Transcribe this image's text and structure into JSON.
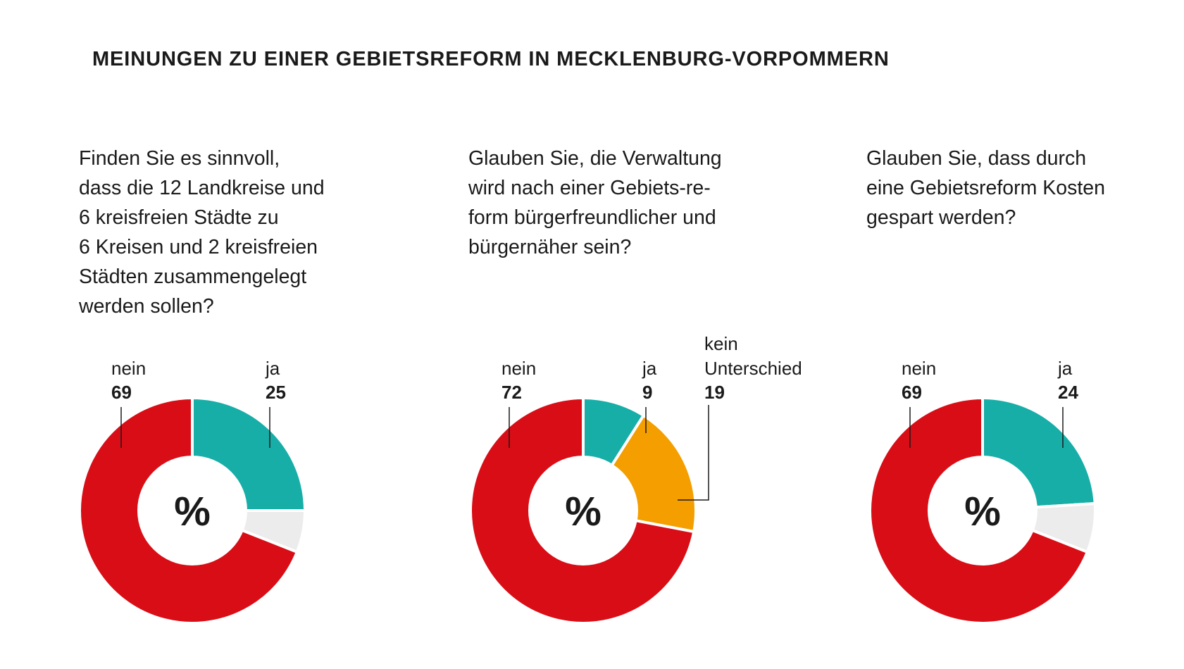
{
  "title": "MEINUNGEN ZU EINER GEBIETSREFORM IN MECKLENBURG-VORPOMMERN",
  "colors": {
    "nein": "#d90d16",
    "ja": "#17aea8",
    "kein_unterschied": "#f49e00",
    "rest": "#ececec",
    "text": "#1a1a1a"
  },
  "chart_data": [
    {
      "type": "pie",
      "variant": "donut",
      "center_label": "%",
      "question_lines": [
        "Finden Sie es sinnvoll,",
        "dass die 12 Landkreise und",
        "6 kreisfreien Städte zu",
        "6 Kreisen und 2 kreisfreien",
        "Städten zusammengelegt",
        "werden sollen?"
      ],
      "slices": [
        {
          "key": "ja",
          "label": "ja",
          "value": 25
        },
        {
          "key": "rest",
          "label": "",
          "value": 6
        },
        {
          "key": "nein",
          "label": "nein",
          "value": 69
        }
      ]
    },
    {
      "type": "pie",
      "variant": "donut",
      "center_label": "%",
      "question_lines": [
        "Glauben Sie, die Verwaltung",
        "wird nach einer Gebiets-re-",
        "form bürgerfreundlicher und",
        "bürgernäher sein?"
      ],
      "slices": [
        {
          "key": "ja",
          "label": "ja",
          "value": 9
        },
        {
          "key": "kein_unterschied",
          "label": "kein Unterschied",
          "label_lines": [
            "kein",
            "Unterschied"
          ],
          "value": 19
        },
        {
          "key": "nein",
          "label": "nein",
          "value": 72
        }
      ]
    },
    {
      "type": "pie",
      "variant": "donut",
      "center_label": "%",
      "question_lines": [
        "Glauben Sie, dass durch",
        "eine Gebietsreform Kosten",
        "gespart werden?"
      ],
      "slices": [
        {
          "key": "ja",
          "label": "ja",
          "value": 24
        },
        {
          "key": "rest",
          "label": "",
          "value": 7
        },
        {
          "key": "nein",
          "label": "nein",
          "value": 69
        }
      ]
    }
  ]
}
